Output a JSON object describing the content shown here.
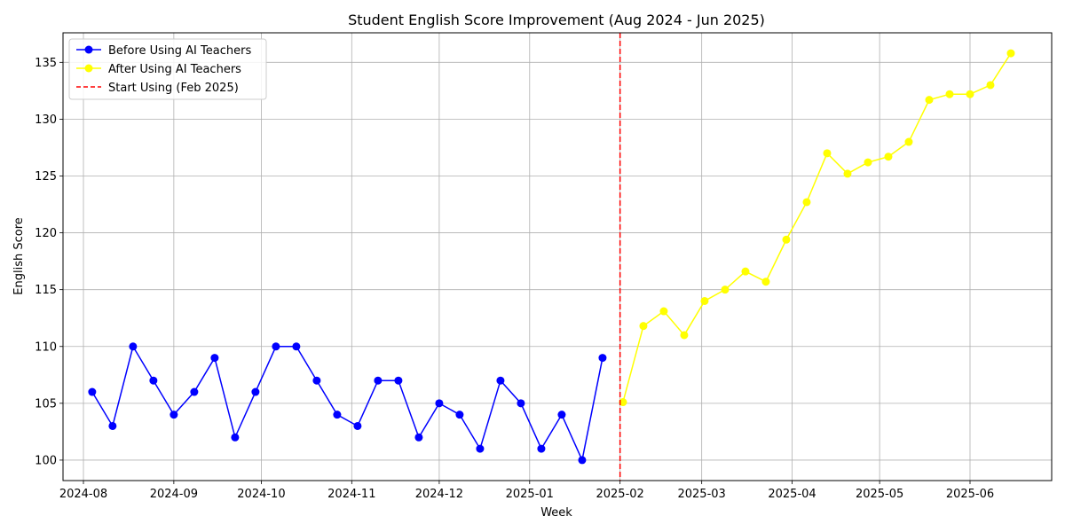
{
  "chart_data": {
    "type": "line",
    "title": "Student English Score Improvement (Aug 2024 - Jun 2025)",
    "xlabel": "Week",
    "ylabel": "English Score",
    "xlim": [
      "2024-07-25",
      "2025-06-29"
    ],
    "ylim": [
      98.2,
      137.6
    ],
    "x_ticks": [
      "2024-08-01",
      "2024-09-01",
      "2024-10-01",
      "2024-11-01",
      "2024-12-01",
      "2025-01-01",
      "2025-02-01",
      "2025-03-01",
      "2025-04-01",
      "2025-05-01",
      "2025-06-01"
    ],
    "x_tick_labels": [
      "2024-08",
      "2024-09",
      "2024-10",
      "2024-11",
      "2024-12",
      "2025-01",
      "2025-02",
      "2025-03",
      "2025-04",
      "2025-05",
      "2025-06"
    ],
    "y_ticks": [
      100,
      105,
      110,
      115,
      120,
      125,
      130,
      135
    ],
    "grid": true,
    "legend": "upper-left",
    "series": [
      {
        "name": "Before Using AI Teachers",
        "color": "#0000ff",
        "x": [
          "2024-08-04",
          "2024-08-11",
          "2024-08-18",
          "2024-08-25",
          "2024-09-01",
          "2024-09-08",
          "2024-09-15",
          "2024-09-22",
          "2024-09-29",
          "2024-10-06",
          "2024-10-13",
          "2024-10-20",
          "2024-10-27",
          "2024-11-03",
          "2024-11-10",
          "2024-11-17",
          "2024-11-24",
          "2024-12-01",
          "2024-12-08",
          "2024-12-15",
          "2024-12-22",
          "2024-12-29",
          "2025-01-05",
          "2025-01-12",
          "2025-01-19",
          "2025-01-26"
        ],
        "y": [
          106,
          103,
          110,
          107,
          104,
          106,
          109,
          102,
          106,
          110,
          110,
          107,
          104,
          103,
          107,
          107,
          102,
          105,
          104,
          101,
          107,
          105,
          101,
          104,
          100,
          109
        ]
      },
      {
        "name": "After Using AI Teachers",
        "color": "#ffff00",
        "x": [
          "2025-02-02",
          "2025-02-09",
          "2025-02-16",
          "2025-02-23",
          "2025-03-02",
          "2025-03-09",
          "2025-03-16",
          "2025-03-23",
          "2025-03-30",
          "2025-04-06",
          "2025-04-13",
          "2025-04-20",
          "2025-04-27",
          "2025-05-04",
          "2025-05-11",
          "2025-05-18",
          "2025-05-25",
          "2025-06-01",
          "2025-06-08",
          "2025-06-15"
        ],
        "y": [
          105.1,
          111.8,
          113.1,
          111.0,
          114.0,
          115.0,
          116.6,
          115.7,
          119.4,
          122.7,
          127.0,
          125.2,
          126.2,
          126.7,
          128.0,
          131.7,
          132.2,
          132.2,
          133.0,
          135.8
        ]
      }
    ],
    "vline": {
      "name": "Start Using (Feb 2025)",
      "x": "2025-02-01",
      "color": "#ff0000"
    }
  }
}
